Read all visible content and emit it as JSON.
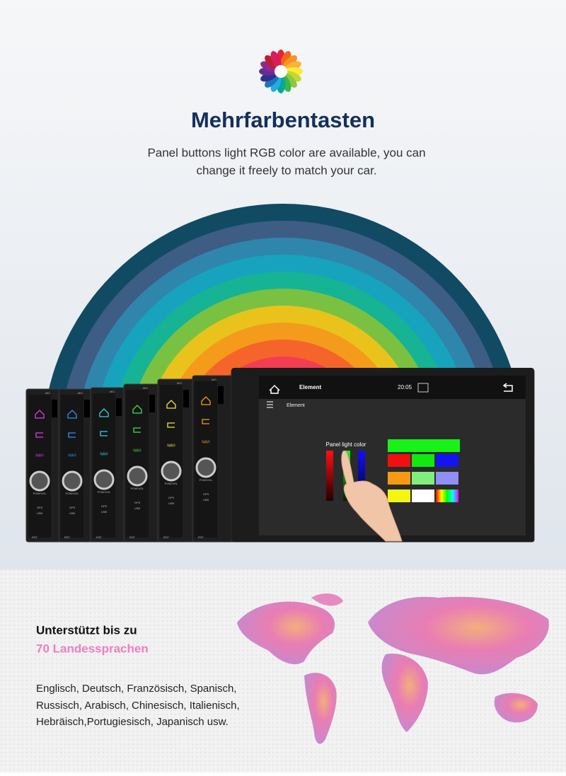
{
  "header": {
    "title": "Mehrfarbentasten",
    "subtitle_lines": [
      "Panel buttons light RGB color are available, you can",
      "change it freely to match your car."
    ]
  },
  "screen": {
    "status_title": "Element",
    "time": "20:05",
    "toolbar_title": "Element",
    "panel_label": "Panel light color"
  },
  "device": {
    "mic": "MIC",
    "navi": "NAVI",
    "powvol": "POW/VOL",
    "gps": "GPS",
    "usb": "USB",
    "rst": "RST"
  },
  "languages": {
    "heading": "Unterstützt bis zu",
    "highlight": "70 Landessprachen",
    "lines": [
      "Englisch, Deutsch, Französisch, Spanisch,",
      "Russisch, Arabisch, Chinesisch, Italienisch,",
      "Hebräisch,Portugiesisch, Japanisch usw."
    ]
  }
}
